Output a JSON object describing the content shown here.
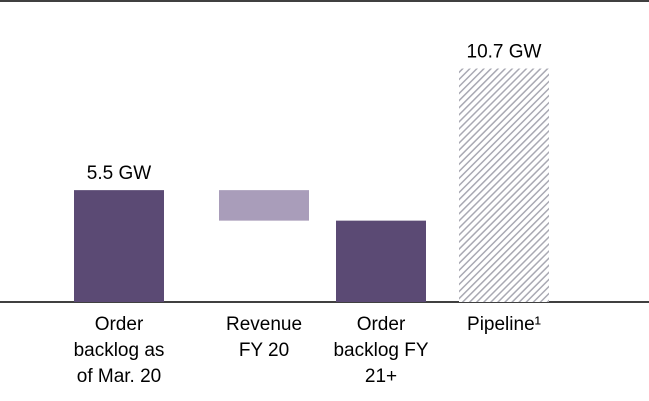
{
  "chart_data": {
    "type": "waterfall",
    "categories": [
      [
        "Order",
        "backlog as",
        "of Mar. 20"
      ],
      [
        "Revenue",
        "FY 20"
      ],
      [
        "Order",
        "backlog FY",
        "21+"
      ],
      [
        "Pipeline¹"
      ]
    ],
    "values": [
      5.5,
      -1.5,
      4.0,
      10.7
    ],
    "value_labels": [
      "5.5 GW",
      null,
      null,
      "10.7 GW"
    ],
    "measures": [
      "absolute",
      "relative",
      "total",
      "absolute"
    ],
    "axes": [
      "y",
      "y",
      "y",
      "y2"
    ],
    "colors": [
      "#5b4a74",
      "#a99dba",
      "#5b4a74",
      "#a9a9b3"
    ],
    "hatched": [
      false,
      false,
      false,
      true
    ],
    "ylim": [
      0,
      11.8
    ],
    "y2lim": [
      0,
      11
    ]
  }
}
